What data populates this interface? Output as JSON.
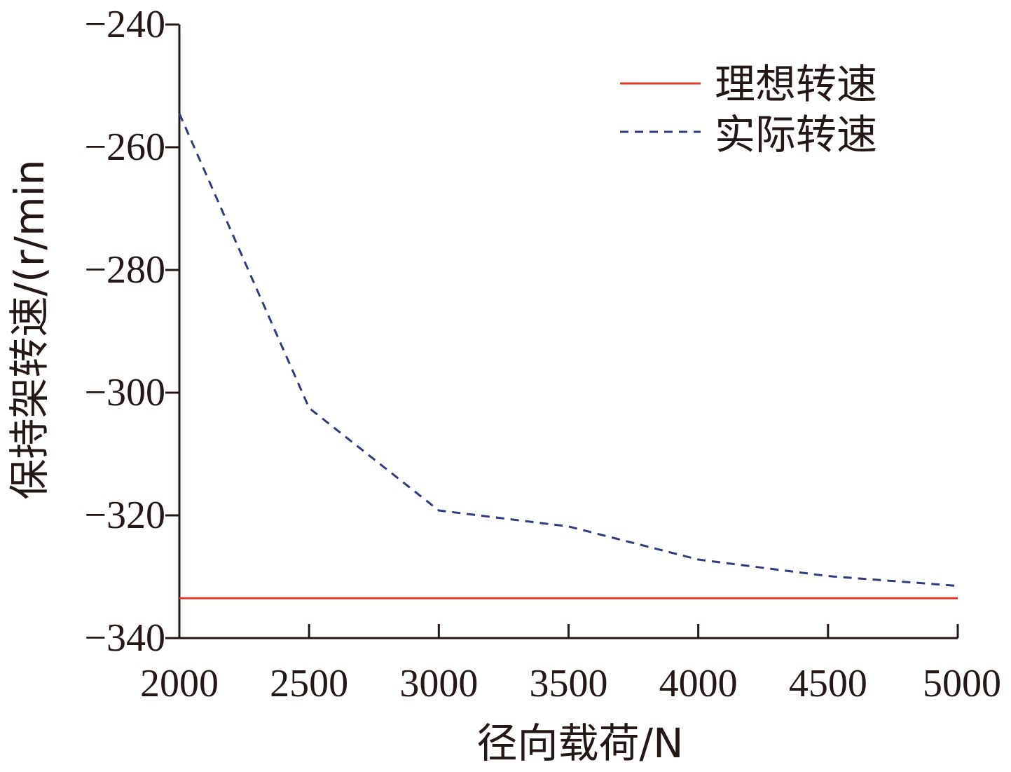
{
  "chart_data": {
    "type": "line",
    "title": "",
    "xlabel": "径向载荷/N",
    "ylabel": "保持架转速/(r/min",
    "xlim": [
      2000,
      5000
    ],
    "ylim": [
      -340,
      -240
    ],
    "x_ticks": [
      2000,
      2500,
      3000,
      3500,
      4000,
      4500,
      5000
    ],
    "y_ticks": [
      -240,
      -260,
      -280,
      -300,
      -320,
      -340
    ],
    "y_tick_labels": [
      "−240",
      "−260",
      "−280",
      "−300",
      "−320",
      "−340"
    ],
    "x_tick_labels": [
      "2000",
      "2500",
      "3000",
      "3500",
      "4000",
      "4500",
      "5000"
    ],
    "grid": false,
    "legend_position": "top-right",
    "series": [
      {
        "name": "理想转速",
        "color": "#e2382e",
        "style": "solid",
        "x": [
          2000,
          5000
        ],
        "y": [
          -333.5,
          -333.5
        ]
      },
      {
        "name": "实际转速",
        "color": "#2e3c7e",
        "style": "dashed",
        "x": [
          2000,
          2500,
          3000,
          3500,
          4000,
          4500,
          5000
        ],
        "y": [
          -254.5,
          -302.5,
          -319.2,
          -321.8,
          -327.2,
          -329.9,
          -331.5
        ]
      }
    ]
  }
}
